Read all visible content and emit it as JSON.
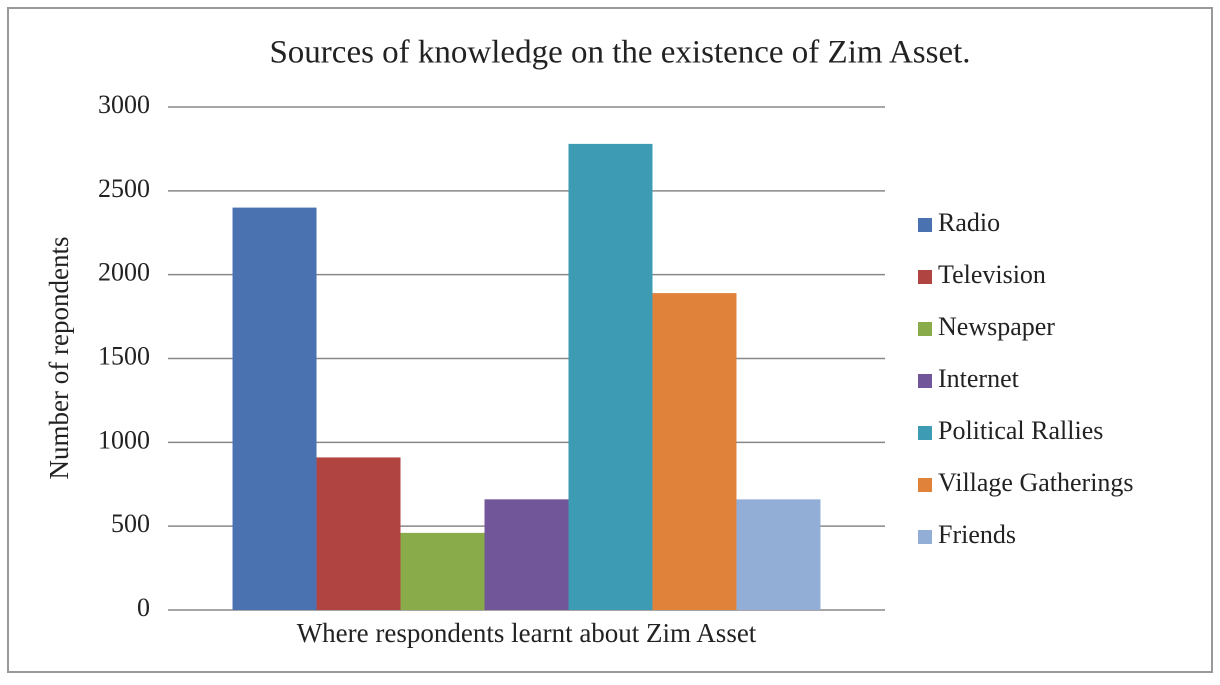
{
  "chart_data": {
    "type": "bar",
    "title": "Sources of knowledge on the existence of Zim Asset.",
    "y_label": "Number of repondents",
    "categories": [
      "Where respondents learnt about Zim Asset"
    ],
    "series": [
      {
        "name": "Radio",
        "color": "#4a72b0",
        "values": [
          2400
        ]
      },
      {
        "name": "Television",
        "color": "#b04440",
        "values": [
          910
        ]
      },
      {
        "name": "Newspaper",
        "color": "#8aab4a",
        "values": [
          460
        ]
      },
      {
        "name": "Internet",
        "color": "#71579a",
        "values": [
          660
        ]
      },
      {
        "name": "Political Rallies",
        "color": "#3d9bb3",
        "values": [
          2780
        ]
      },
      {
        "name": "Village Gatherings",
        "color": "#e0823a",
        "values": [
          1890
        ]
      },
      {
        "name": "Friends",
        "color": "#93aed6",
        "values": [
          660
        ]
      }
    ],
    "ylim": [
      0,
      3000
    ],
    "yticks": [
      0,
      500,
      1000,
      1500,
      2000,
      2500,
      3000
    ],
    "grid": true,
    "legend": "right"
  }
}
